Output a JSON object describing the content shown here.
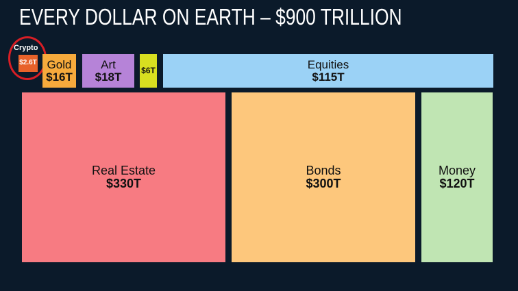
{
  "title": "EVERY DOLLAR ON EARTH – $900 TRILLION",
  "chart_data": {
    "type": "treemap",
    "title": "EVERY DOLLAR ON EARTH – $900 TRILLION",
    "unit": "trillion USD",
    "items": [
      {
        "label": "Crypto",
        "value": 2.6,
        "value_label": "$2.6T",
        "color": "#e8622a",
        "highlighted": true
      },
      {
        "label": "Gold",
        "value": 16,
        "value_label": "$16T",
        "color": "#f6aa3c"
      },
      {
        "label": "Art",
        "value": 18,
        "value_label": "$18T",
        "color": "#b683d8"
      },
      {
        "label": "",
        "value": 6,
        "value_label": "$6T",
        "color": "#d8df20"
      },
      {
        "label": "Equities",
        "value": 115,
        "value_label": "$115T",
        "color": "#9bd2f6"
      },
      {
        "label": "Real Estate",
        "value": 330,
        "value_label": "$330T",
        "color": "#f77b82"
      },
      {
        "label": "Bonds",
        "value": 300,
        "value_label": "$300T",
        "color": "#fdc77c"
      },
      {
        "label": "Money",
        "value": 120,
        "value_label": "$120T",
        "color": "#c0e5b3"
      }
    ]
  }
}
